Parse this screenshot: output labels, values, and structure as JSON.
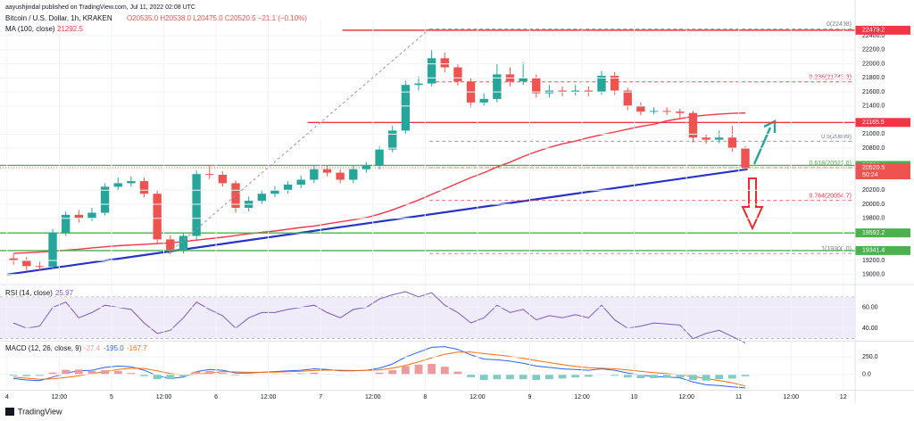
{
  "chart_data": [
    {
      "type": "candlestick",
      "publisher": "aayushjindal published on TradingView.com, Jul 11, 2022 02:08 UTC",
      "title": "Bitcoin / U.S. Dollar, 1h, KRAKEN",
      "ohlc_text": "O20535.0 H20538.0 L20475.0 C20520.5 −21.1 (−0.10%)",
      "x": [
        1.5,
        4.5,
        7.5,
        10.5,
        13.5,
        16.5,
        19.5,
        22.5,
        25.5,
        28.5,
        31.5,
        34.5,
        37.5,
        40.5,
        43.5,
        46.5,
        49.5,
        52.5,
        55.5,
        58.5,
        61.5,
        64.5,
        67.5,
        70.5,
        73.5,
        76.5,
        79.5,
        82.5,
        85.5,
        88.5,
        91.5,
        94.5,
        97.5,
        100.5,
        103.5,
        106.5,
        109.5,
        112.5,
        115.5,
        118.5,
        121.5,
        124.5,
        127.5,
        130.5,
        133.5,
        136.5,
        139.5,
        142.5,
        145.5,
        148.5,
        151.5,
        154.5,
        157.5,
        160.5,
        163.5,
        166.5,
        169.5
      ],
      "open": [
        19230,
        19200,
        19120,
        19110,
        19600,
        19850,
        19800,
        19880,
        20250,
        20300,
        20330,
        20150,
        19500,
        19350,
        19550,
        20430,
        20420,
        20300,
        19950,
        20050,
        20150,
        20200,
        20280,
        20350,
        20500,
        20450,
        20350,
        20500,
        20550,
        20780,
        21050,
        21700,
        21720,
        22080,
        21950,
        21750,
        21450,
        21500,
        21850,
        21750,
        21800,
        21580,
        21620,
        21600,
        21620,
        21600,
        21830,
        21620,
        21400,
        21320,
        21330,
        21320,
        21300,
        20950,
        20920,
        20950,
        20800
      ],
      "high": [
        19290,
        19250,
        19180,
        19650,
        19900,
        19920,
        19950,
        20300,
        20380,
        20400,
        20380,
        20200,
        19560,
        19600,
        20480,
        20560,
        20470,
        20340,
        20110,
        20200,
        20260,
        20330,
        20410,
        20560,
        20550,
        20500,
        20550,
        20600,
        20830,
        21120,
        21760,
        21820,
        22200,
        22160,
        22000,
        21800,
        21580,
        22000,
        21950,
        22020,
        21850,
        21700,
        21680,
        21700,
        21680,
        21900,
        21880,
        21660,
        21450,
        21380,
        21380,
        21360,
        21330,
        21000,
        21050,
        21120,
        20830
      ],
      "low": [
        19140,
        19060,
        19050,
        19080,
        19550,
        19740,
        19760,
        19840,
        20200,
        20250,
        20100,
        19450,
        19290,
        19300,
        19500,
        20360,
        20250,
        19880,
        19900,
        20000,
        20100,
        20150,
        20230,
        20300,
        20400,
        20300,
        20300,
        20450,
        20500,
        20740,
        21000,
        21620,
        21680,
        21880,
        21690,
        21380,
        21400,
        21450,
        21680,
        21700,
        21520,
        21520,
        21540,
        21550,
        21540,
        21560,
        21560,
        21340,
        21270,
        21280,
        21270,
        21220,
        20880,
        20860,
        20870,
        20750,
        20475
      ],
      "close": [
        19200,
        19120,
        19110,
        19600,
        19850,
        19800,
        19880,
        20250,
        20300,
        20330,
        20150,
        19500,
        19350,
        19550,
        20430,
        20420,
        20300,
        19950,
        20050,
        20150,
        20200,
        20280,
        20350,
        20500,
        20450,
        20350,
        20500,
        20550,
        20780,
        21050,
        21700,
        21720,
        22080,
        21950,
        21750,
        21450,
        21500,
        21850,
        21750,
        21800,
        21580,
        21620,
        21600,
        21620,
        21600,
        21830,
        21620,
        21400,
        21320,
        21330,
        21320,
        21300,
        20950,
        20920,
        20950,
        20800,
        20520.5
      ],
      "up_color": "#26a69a",
      "down_color": "#ef5350",
      "xlim": [
        -1.6,
        194.7
      ],
      "xticks": [
        {
          "value": 0,
          "label": "4"
        },
        {
          "value": 12,
          "label": "12:00"
        },
        {
          "value": 24,
          "label": "5"
        },
        {
          "value": 36,
          "label": "12:00"
        },
        {
          "value": 48,
          "label": "6"
        },
        {
          "value": 60,
          "label": "12:00"
        },
        {
          "value": 72,
          "label": "7"
        },
        {
          "value": 84,
          "label": "12:00"
        },
        {
          "value": 96,
          "label": "8"
        },
        {
          "value": 108,
          "label": "12:00"
        },
        {
          "value": 120,
          "label": "9"
        },
        {
          "value": 132,
          "label": "12:00"
        },
        {
          "value": 144,
          "label": "10"
        },
        {
          "value": 156,
          "label": "12:00"
        },
        {
          "value": 168,
          "label": "11"
        },
        {
          "value": 180,
          "label": "12:00"
        },
        {
          "value": 192,
          "label": "12"
        }
      ],
      "ylim": [
        18870,
        22630
      ],
      "yticks": [
        {
          "value": 19000,
          "label": "19000.0"
        },
        {
          "value": 19200,
          "label": "19200.0"
        },
        {
          "value": 19800,
          "label": "19800.0"
        },
        {
          "value": 20000,
          "label": "20000.0"
        },
        {
          "value": 20200,
          "label": "20200.0"
        },
        {
          "value": 20800,
          "label": "20800.0"
        },
        {
          "value": 21000,
          "label": "21000.0"
        },
        {
          "value": 21400,
          "label": "21400.0"
        },
        {
          "value": 21600,
          "label": "21600.0"
        },
        {
          "value": 21800,
          "label": "21800.0"
        },
        {
          "value": 22000,
          "label": "22000.0"
        },
        {
          "value": 22200,
          "label": "22200.0"
        },
        {
          "value": 22400,
          "label": "22400.0"
        }
      ],
      "grid": true,
      "ma": {
        "name": "MA (100, close)",
        "last": 21292.5,
        "color": "#f23645",
        "values": [
          19300,
          19310,
          19320,
          19330,
          19345,
          19360,
          19380,
          19395,
          19410,
          19420,
          19430,
          19440,
          19450,
          19470,
          19490,
          19510,
          19530,
          19555,
          19580,
          19600,
          19620,
          19645,
          19670,
          19690,
          19720,
          19750,
          19780,
          19810,
          19860,
          19920,
          19990,
          20060,
          20140,
          20220,
          20300,
          20380,
          20450,
          20530,
          20600,
          20680,
          20750,
          20810,
          20860,
          20900,
          20950,
          20990,
          21030,
          21070,
          21110,
          21140,
          21190,
          21220,
          21250,
          21270,
          21285,
          21295,
          21300
        ]
      },
      "trendline": {
        "x": [
          0,
          170
        ],
        "values": [
          19000,
          20500
        ],
        "color": "#2632c9"
      },
      "levels": [
        {
          "value": 22479.2,
          "color": "#f23645",
          "x_from": 77
        },
        {
          "value": 21165.5,
          "color": "#f23645",
          "x_from": 69
        },
        {
          "value": 20553.4,
          "color": "#4caf50",
          "x_from": -1.6
        },
        {
          "value": 19592.2,
          "color": "#4caf50",
          "x_from": -1.6
        },
        {
          "value": 19341.4,
          "color": "#4caf50",
          "x_from": -1.6
        }
      ],
      "fib": [
        {
          "label": "0(22498)",
          "value": 22498,
          "color": "#787b86"
        },
        {
          "label": "0.236(21743.3)",
          "value": 21743.3,
          "color": "#f23645"
        },
        {
          "label": "0.5(20899)",
          "value": 20899,
          "color": "#787b86"
        },
        {
          "label": "0.618(20521.6)",
          "value": 20521.6,
          "color": "#4caf50"
        },
        {
          "label": "0.764(20054.7)",
          "value": 20054.7,
          "color": "#f23645"
        },
        {
          "label": "1(19300.0)",
          "value": 19300,
          "color": "#787b86"
        }
      ],
      "fib_x_from": 97,
      "countdown": "50:24"
    },
    {
      "type": "line",
      "name": "RSI (14, close)",
      "last_label": "25.97",
      "color": "#7e57c2",
      "values": [
        45,
        40,
        42,
        60,
        65,
        50,
        55,
        62,
        60,
        58,
        45,
        35,
        38,
        50,
        65,
        58,
        52,
        40,
        50,
        55,
        55,
        58,
        60,
        62,
        55,
        50,
        58,
        60,
        68,
        72,
        75,
        70,
        74,
        62,
        55,
        45,
        50,
        62,
        55,
        58,
        48,
        52,
        50,
        53,
        50,
        62,
        48,
        40,
        42,
        45,
        44,
        43,
        30,
        35,
        38,
        32,
        25.97
      ],
      "band": [
        30,
        70
      ],
      "band_color": "#7e57c2",
      "ylim": [
        28,
        81
      ],
      "yticks": [
        {
          "value": 60,
          "label": "60.00"
        },
        {
          "value": 40,
          "label": "40.00"
        }
      ]
    },
    {
      "type": "macd",
      "name": "MACD (12, 26, close, 9)",
      "legend_values": [
        "-27.4",
        "-195.0",
        "-167.7"
      ],
      "histogram": {
        "pos_color": "#ef9a9a",
        "neg_color": "#80cbc4",
        "values": [
          -20,
          -25,
          -20,
          25,
          65,
          70,
          50,
          60,
          50,
          20,
          -25,
          -70,
          -70,
          -30,
          40,
          50,
          20,
          -15,
          -10,
          0,
          8,
          12,
          15,
          25,
          8,
          -10,
          -6,
          3,
          25,
          60,
          120,
          140,
          150,
          110,
          40,
          -40,
          -80,
          -70,
          -70,
          -70,
          -80,
          -70,
          -60,
          -45,
          -35,
          -8,
          -20,
          -45,
          -55,
          -55,
          -50,
          -45,
          -80,
          -90,
          -70,
          -60,
          -27.4
        ]
      },
      "series": [
        {
          "name": "MACD",
          "color": "#2962ff",
          "values": [
            -60,
            -80,
            -90,
            -40,
            20,
            50,
            60,
            100,
            120,
            110,
            60,
            -20,
            -60,
            -40,
            40,
            70,
            60,
            20,
            20,
            30,
            40,
            50,
            60,
            80,
            70,
            50,
            50,
            60,
            90,
            150,
            250,
            320,
            390,
            400,
            360,
            280,
            220,
            210,
            190,
            160,
            120,
            100,
            80,
            70,
            60,
            80,
            60,
            20,
            -10,
            -30,
            -40,
            -50,
            -110,
            -150,
            -160,
            -180,
            -195
          ]
        },
        {
          "name": "Signal",
          "color": "#ff6d00",
          "values": [
            -40,
            -55,
            -70,
            -65,
            -45,
            -20,
            10,
            40,
            70,
            90,
            85,
            50,
            10,
            -10,
            0,
            20,
            40,
            35,
            30,
            30,
            32,
            38,
            45,
            55,
            62,
            60,
            56,
            57,
            65,
            90,
            130,
            180,
            240,
            290,
            320,
            320,
            300,
            280,
            260,
            230,
            200,
            170,
            140,
            115,
            95,
            88,
            80,
            65,
            45,
            25,
            10,
            -5,
            -30,
            -60,
            -90,
            -120,
            -167.7
          ]
        }
      ],
      "ylim": [
        -222,
        472
      ],
      "yticks": [
        {
          "value": 250,
          "label": "250.0"
        },
        {
          "value": 0,
          "label": "0.0"
        }
      ]
    }
  ],
  "footer": "TradingView"
}
